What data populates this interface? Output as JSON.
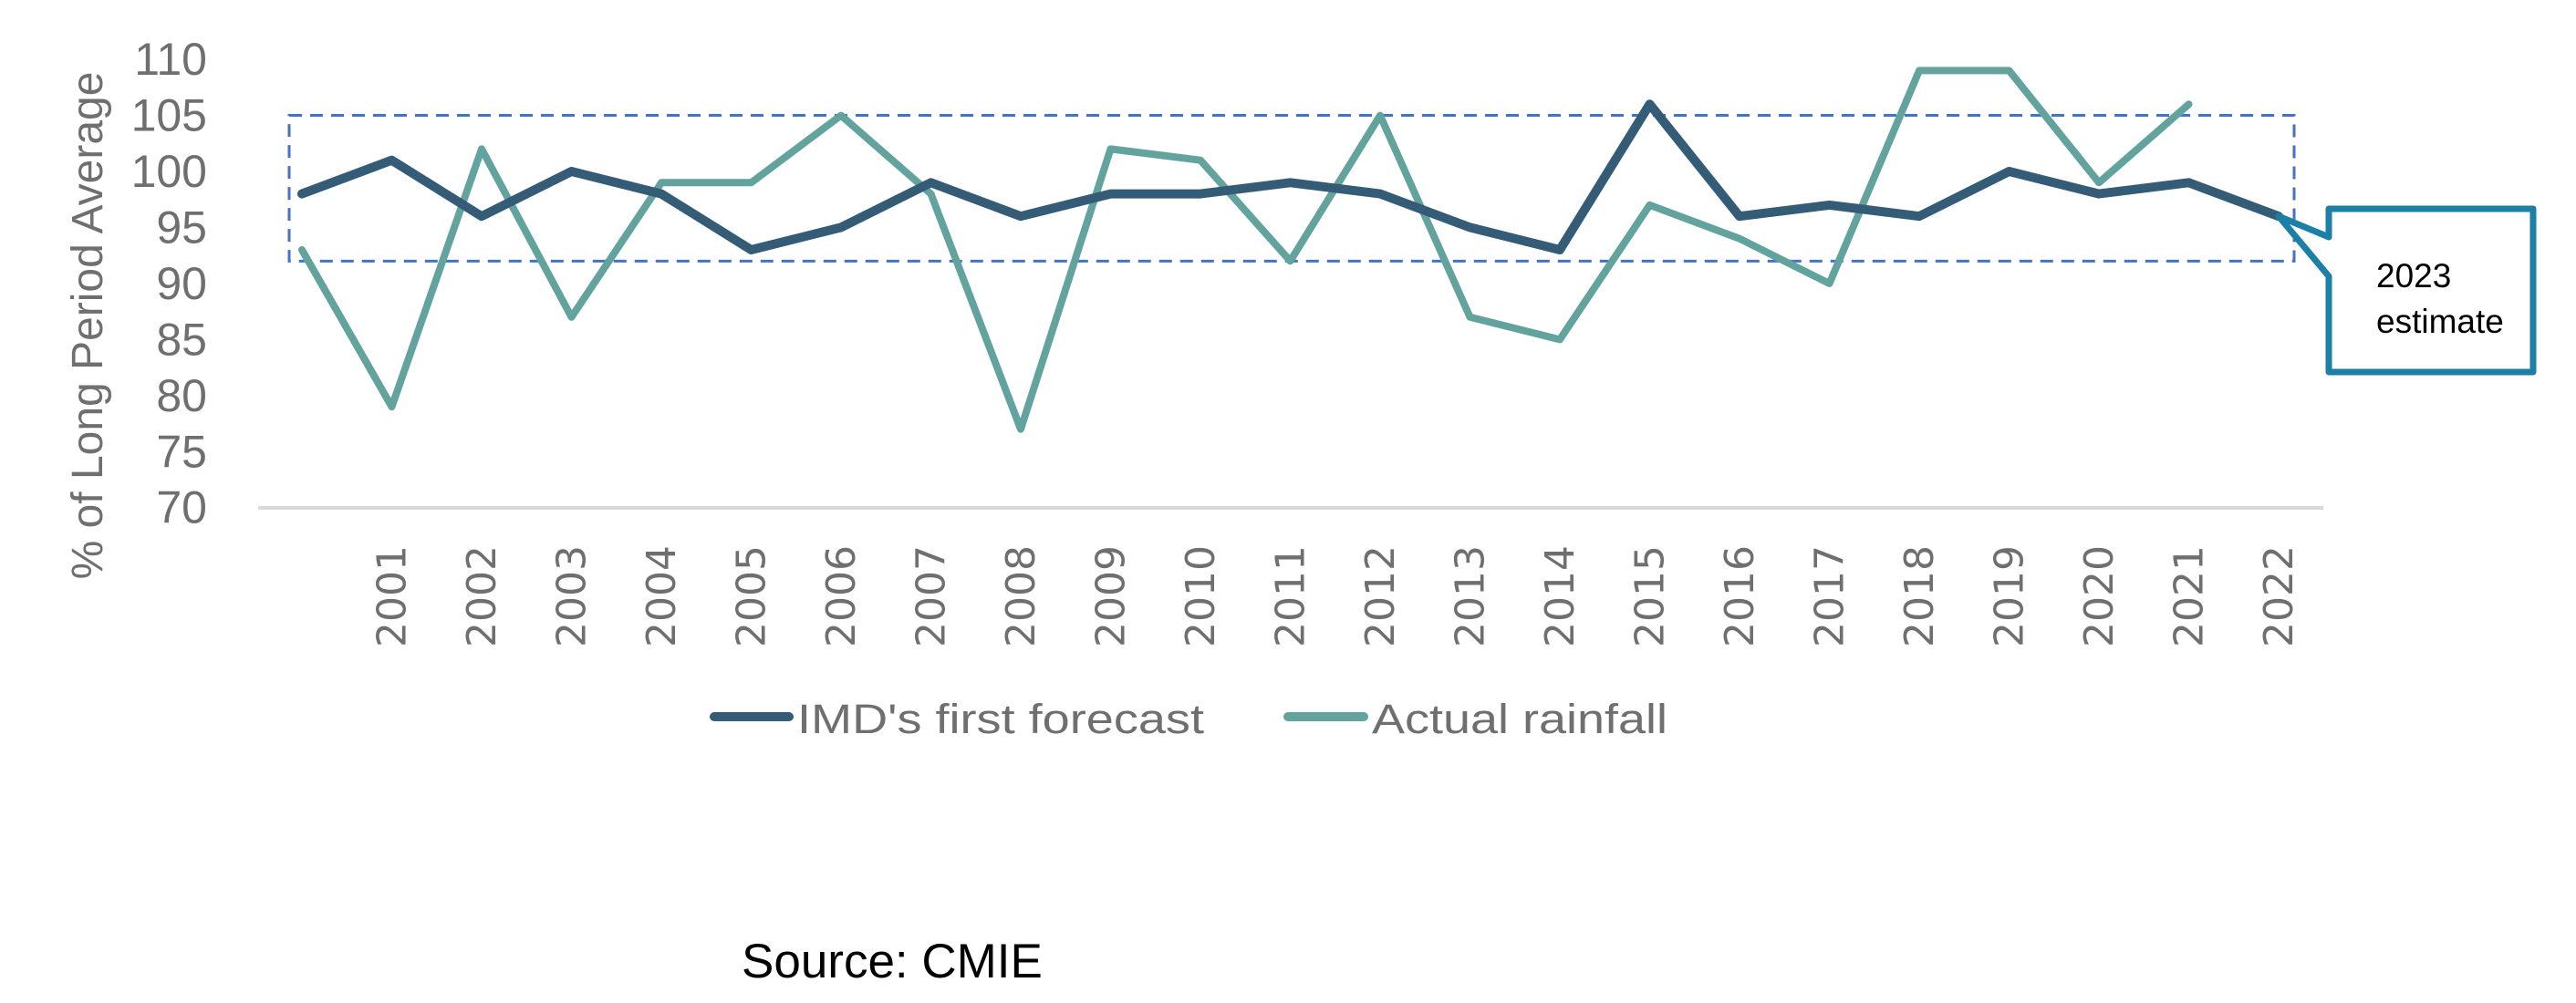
{
  "chart_data": {
    "type": "line",
    "title": "",
    "xlabel": "",
    "ylabel": "% of Long Period Average",
    "ylim": [
      70,
      110
    ],
    "yticks": [
      70,
      75,
      80,
      85,
      90,
      95,
      100,
      105,
      110
    ],
    "grid": false,
    "categories": [
      "",
      "2001",
      "2002",
      "2003",
      "2004",
      "2005",
      "2006",
      "2007",
      "2008",
      "2009",
      "2010",
      "2011",
      "2012",
      "2013",
      "2014",
      "2015",
      "2016",
      "2017",
      "2018",
      "2019",
      "2020",
      "2021",
      "2022"
    ],
    "series": [
      {
        "name": "IMD's first forecast",
        "color": "#355c77",
        "values": [
          98,
          101,
          96,
          100,
          98,
          93,
          95,
          99,
          96,
          98,
          98,
          99,
          98,
          95,
          93,
          106,
          96,
          97,
          96,
          100,
          98,
          99,
          96
        ]
      },
      {
        "name": "Actual rainfall",
        "color": "#63a39e",
        "values": [
          93,
          79,
          102,
          87,
          99,
          99,
          105,
          98,
          77,
          102,
          101,
          92,
          105,
          87,
          85,
          97,
          94,
          90,
          109,
          109,
          99,
          106,
          null
        ]
      }
    ],
    "legend": {
      "position": "bottom",
      "items": [
        "IMD's first forecast",
        "Actual rainfall"
      ]
    },
    "annotations": {
      "range_box": {
        "label": "",
        "y_range": [
          92,
          105
        ],
        "color": "#4472c4",
        "style": "dashed"
      },
      "callout": {
        "lines": [
          "2023",
          "estimate"
        ],
        "points_to_category": "2022",
        "border_color": "#1b7fa6"
      }
    },
    "source": "Source: CMIE"
  },
  "colors": {
    "axis_text": "#6f6f6f",
    "axis_line": "#d9d9d9",
    "forecast": "#355c77",
    "actual": "#63a39e",
    "range_box": "#4472c4",
    "callout": "#1b7fa6"
  }
}
